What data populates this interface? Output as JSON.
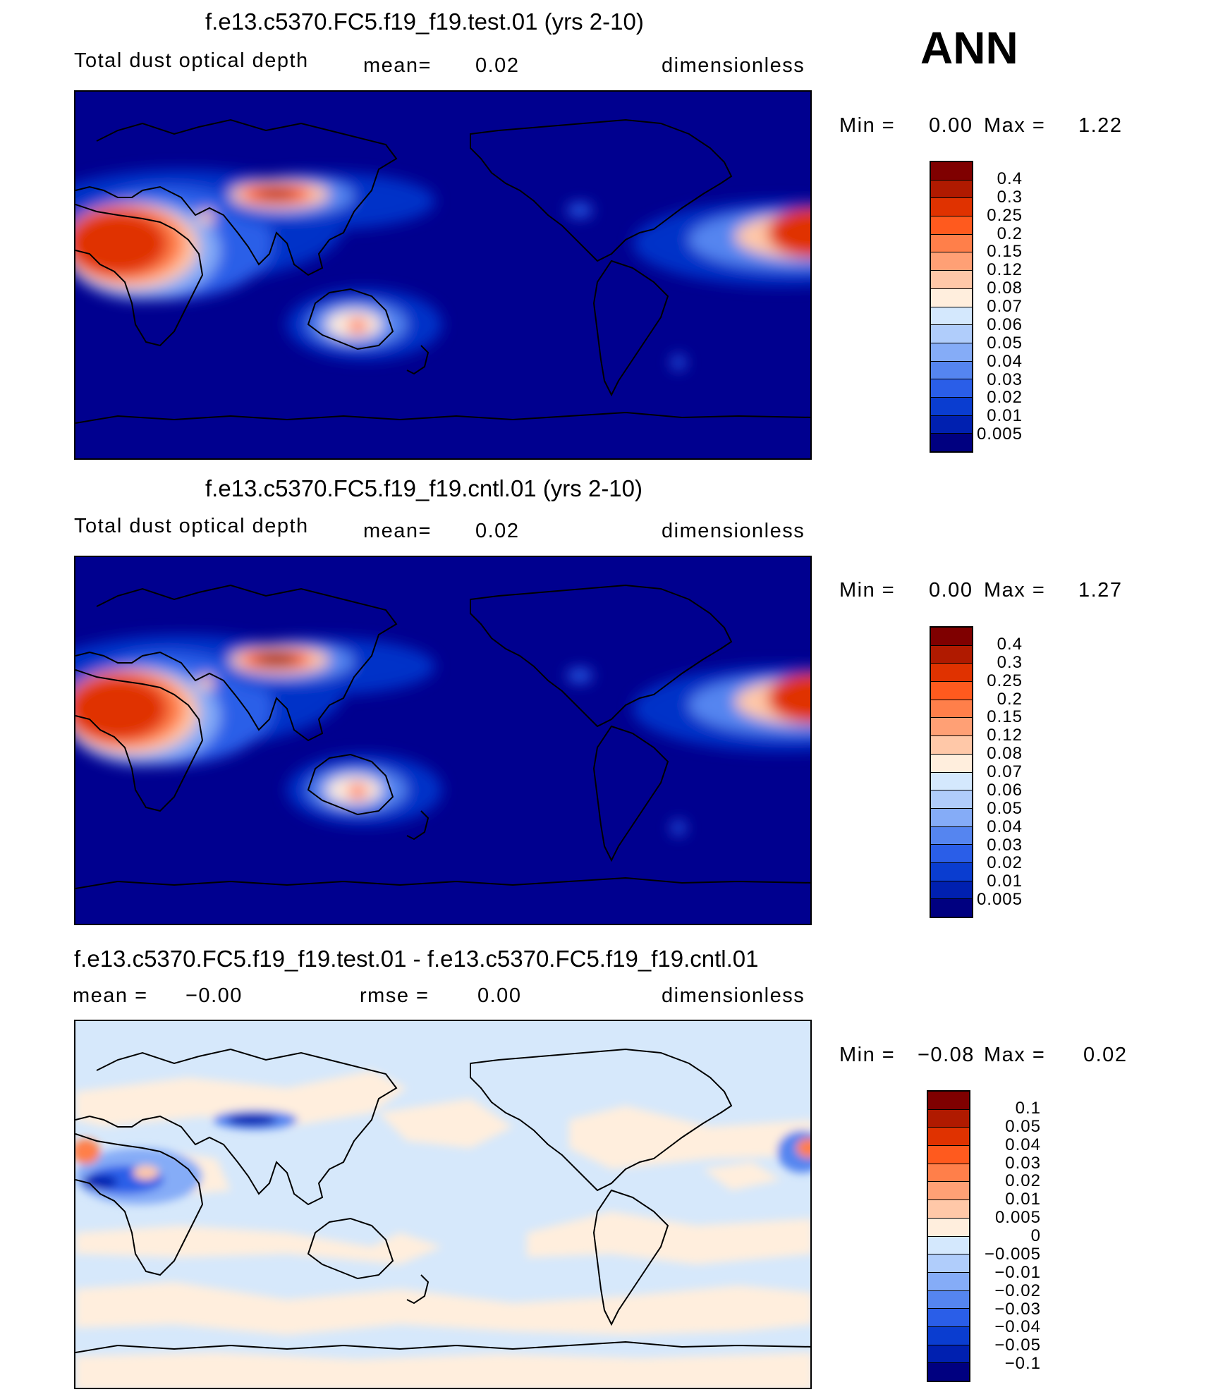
{
  "season": "ANN",
  "colors": {
    "ocean_bg": "#00008f",
    "diff_bg": "#d6e8fb",
    "coast": "#000000"
  },
  "panels": [
    {
      "title": "f.e13.c5370.FC5.f19_f19.test.01 (yrs 2-10)",
      "var_label": "Total dust optical depth",
      "stat1": "mean=",
      "stat1_value": "0.02",
      "units": "dimensionless",
      "min_label": "Min  =",
      "min_value": "0.00",
      "max_label": "Max  =",
      "max_value": "1.22",
      "colorbar": {
        "levels": [
          "0.4",
          "0.3",
          "0.25",
          "0.2",
          "0.15",
          "0.12",
          "0.08",
          "0.07",
          "0.06",
          "0.05",
          "0.04",
          "0.03",
          "0.02",
          "0.01",
          "0.005"
        ],
        "colors": [
          "#7f0000",
          "#b01a00",
          "#e03200",
          "#ff5a1e",
          "#ff7f4a",
          "#ffa075",
          "#ffc8a8",
          "#ffeedd",
          "#d4e8fd",
          "#b0cdfb",
          "#85acf7",
          "#5585f0",
          "#2a5ee8",
          "#0a3dd0",
          "#0020b0",
          "#000080"
        ]
      }
    },
    {
      "title": "f.e13.c5370.FC5.f19_f19.cntl.01 (yrs 2-10)",
      "var_label": "Total dust optical depth",
      "stat1": "mean=",
      "stat1_value": "0.02",
      "units": "dimensionless",
      "min_label": "Min  =",
      "min_value": "0.00",
      "max_label": "Max  =",
      "max_value": "1.27",
      "colorbar": {
        "levels": [
          "0.4",
          "0.3",
          "0.25",
          "0.2",
          "0.15",
          "0.12",
          "0.08",
          "0.07",
          "0.06",
          "0.05",
          "0.04",
          "0.03",
          "0.02",
          "0.01",
          "0.005"
        ],
        "colors": [
          "#7f0000",
          "#b01a00",
          "#e03200",
          "#ff5a1e",
          "#ff7f4a",
          "#ffa075",
          "#ffc8a8",
          "#ffeedd",
          "#d4e8fd",
          "#b0cdfb",
          "#85acf7",
          "#5585f0",
          "#2a5ee8",
          "#0a3dd0",
          "#0020b0",
          "#000080"
        ]
      }
    },
    {
      "title": "f.e13.c5370.FC5.f19_f19.test.01 - f.e13.c5370.FC5.f19_f19.cntl.01",
      "stat1": "mean  =",
      "stat1_value": "−0.00",
      "stat2": "rmse  =",
      "stat2_value": "0.00",
      "units": "dimensionless",
      "min_label": "Min  =",
      "min_value": "−0.08",
      "max_label": "Max  =",
      "max_value": "0.02",
      "colorbar": {
        "levels": [
          "0.1",
          "0.05",
          "0.04",
          "0.03",
          "0.02",
          "0.01",
          "0.005",
          "0",
          "−0.005",
          "−0.01",
          "−0.02",
          "−0.03",
          "−0.04",
          "−0.05",
          "−0.1"
        ],
        "colors": [
          "#7f0000",
          "#b01a00",
          "#e03200",
          "#ff5a1e",
          "#ff7f4a",
          "#ffa075",
          "#ffc8a8",
          "#ffeedd",
          "#d4e8fd",
          "#b0cdfb",
          "#85acf7",
          "#5585f0",
          "#2a5ee8",
          "#0a3dd0",
          "#0020b0",
          "#000080"
        ]
      }
    }
  ]
}
